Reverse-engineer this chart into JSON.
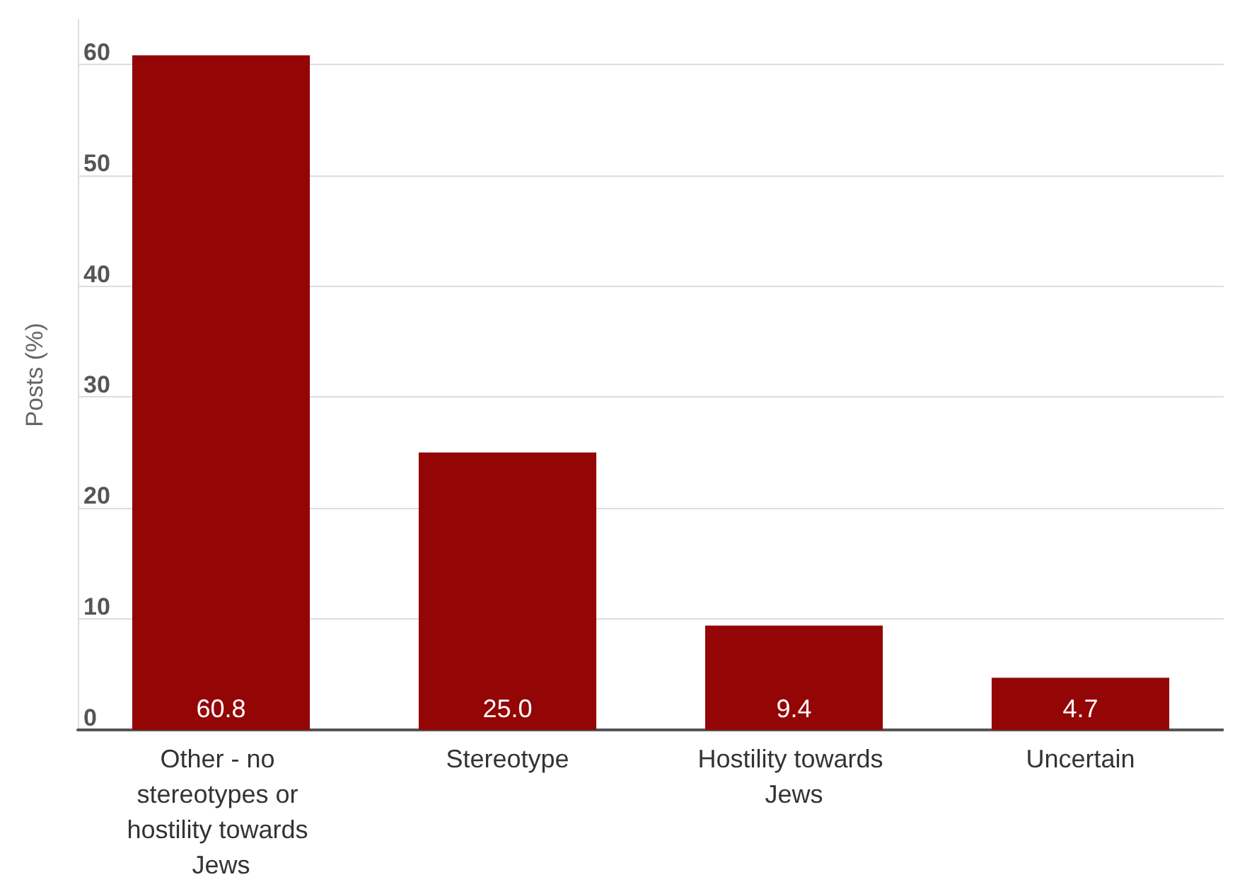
{
  "chart_data": {
    "type": "bar",
    "ylabel": "Posts (%)",
    "categories": [
      "Other - no stereotypes or hostility towards Jews",
      "Stereotype",
      "Hostility towards Jews",
      "Uncertain"
    ],
    "values": [
      60.8,
      25.0,
      9.4,
      4.7
    ],
    "value_labels": [
      "60.8",
      "25.0",
      "9.4",
      "4.7"
    ],
    "color": "#940606",
    "ylim": [
      0,
      64
    ],
    "yticks": [
      0,
      10,
      20,
      30,
      40,
      50,
      60
    ],
    "grid": "y"
  }
}
